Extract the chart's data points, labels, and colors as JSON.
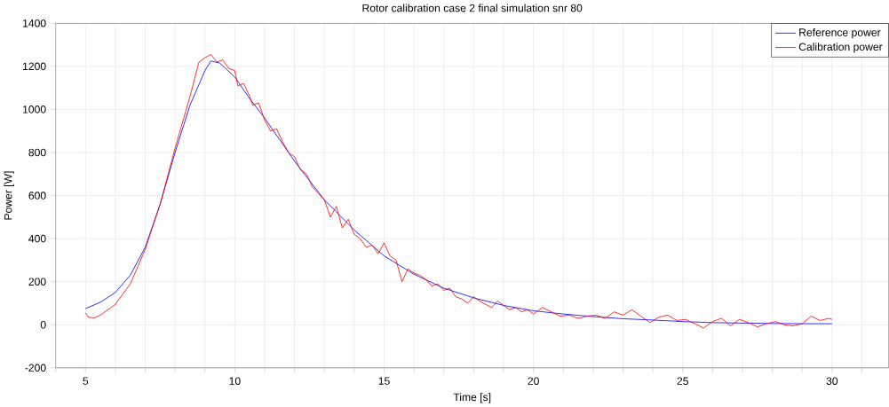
{
  "chart_data": {
    "type": "line",
    "title": "Rotor calibration case 2 final simulation snr 80",
    "xlabel": "Time [s]",
    "ylabel": "Power [W]",
    "xlim": [
      4,
      31.9
    ],
    "ylim": [
      -200,
      1400
    ],
    "xticks": [
      {
        "value": 4,
        "label": null
      },
      5,
      {
        "value": 6,
        "label": null
      },
      {
        "value": 7,
        "label": null
      },
      {
        "value": 8,
        "label": null
      },
      {
        "value": 9,
        "label": null
      },
      10,
      {
        "value": 11,
        "label": null
      },
      {
        "value": 12,
        "label": null
      },
      {
        "value": 13,
        "label": null
      },
      {
        "value": 14,
        "label": null
      },
      15,
      {
        "value": 16,
        "label": null
      },
      {
        "value": 17,
        "label": null
      },
      {
        "value": 18,
        "label": null
      },
      {
        "value": 19,
        "label": null
      },
      20,
      {
        "value": 21,
        "label": null
      },
      {
        "value": 22,
        "label": null
      },
      {
        "value": 23,
        "label": null
      },
      {
        "value": 24,
        "label": null
      },
      25,
      {
        "value": 26,
        "label": null
      },
      {
        "value": 27,
        "label": null
      },
      {
        "value": 28,
        "label": null
      },
      {
        "value": 29,
        "label": null
      },
      30,
      {
        "value": 31,
        "label": null
      }
    ],
    "yticks": [
      -200,
      0,
      200,
      400,
      600,
      800,
      1000,
      1200,
      1400
    ],
    "grid": true,
    "legend": "top right",
    "marker": "none",
    "line_style": "solid",
    "series": [
      {
        "name": "Reference power",
        "color": "#0000ff",
        "x": [
          5,
          5.5,
          6,
          6.5,
          7,
          7.5,
          8,
          8.5,
          9,
          9.2,
          9.5,
          10,
          10.5,
          11,
          11.5,
          12,
          12.5,
          13,
          13.5,
          14,
          14.5,
          15,
          16,
          17,
          18,
          19,
          20,
          21,
          22,
          23,
          24,
          25,
          26,
          27,
          28,
          29,
          30
        ],
        "values": [
          75,
          105,
          150,
          230,
          360,
          560,
          800,
          1020,
          1180,
          1225,
          1215,
          1150,
          1050,
          960,
          860,
          760,
          670,
          580,
          510,
          440,
          380,
          320,
          235,
          170,
          125,
          90,
          65,
          50,
          38,
          28,
          22,
          15,
          10,
          8,
          6,
          5,
          5
        ]
      },
      {
        "name": "Calibration power",
        "color": "#ff0000",
        "x": [
          5,
          5.1,
          5.3,
          5.5,
          6,
          6.5,
          7,
          7.5,
          8,
          8.5,
          8.8,
          9,
          9.2,
          9.4,
          9.6,
          9.8,
          10,
          10.1,
          10.3,
          10.5,
          10.6,
          10.8,
          11,
          11.2,
          11.4,
          11.6,
          11.8,
          12,
          12.2,
          12.4,
          12.6,
          12.8,
          13,
          13.2,
          13.4,
          13.6,
          13.8,
          14,
          14.2,
          14.4,
          14.6,
          14.8,
          15,
          15.2,
          15.4,
          15.6,
          15.8,
          16,
          16.2,
          16.4,
          16.6,
          16.8,
          17,
          17.2,
          17.4,
          17.6,
          17.8,
          18,
          18.2,
          18.4,
          18.6,
          18.8,
          19,
          19.2,
          19.4,
          19.6,
          19.8,
          20,
          20.3,
          20.6,
          20.9,
          21.2,
          21.5,
          21.8,
          22.1,
          22.4,
          22.7,
          23,
          23.3,
          23.6,
          23.9,
          24.2,
          24.5,
          24.8,
          25.1,
          25.4,
          25.7,
          26,
          26.3,
          26.6,
          26.9,
          27.2,
          27.5,
          27.8,
          28.1,
          28.4,
          28.7,
          29,
          29.3,
          29.6,
          29.9,
          30
        ],
        "values": [
          55,
          35,
          32,
          45,
          95,
          190,
          350,
          560,
          820,
          1060,
          1220,
          1240,
          1255,
          1220,
          1230,
          1190,
          1180,
          1110,
          1120,
          1060,
          1020,
          1030,
          950,
          900,
          910,
          850,
          800,
          780,
          720,
          700,
          640,
          610,
          580,
          500,
          550,
          450,
          490,
          420,
          400,
          360,
          370,
          330,
          380,
          320,
          300,
          200,
          260,
          240,
          230,
          210,
          180,
          190,
          160,
          170,
          130,
          120,
          100,
          130,
          110,
          95,
          80,
          110,
          90,
          70,
          80,
          60,
          70,
          50,
          80,
          60,
          40,
          45,
          30,
          40,
          45,
          30,
          60,
          45,
          70,
          40,
          10,
          35,
          45,
          20,
          25,
          5,
          -15,
          15,
          30,
          -5,
          25,
          10,
          -10,
          5,
          15,
          0,
          -5,
          5,
          40,
          20,
          30,
          25
        ]
      }
    ]
  }
}
